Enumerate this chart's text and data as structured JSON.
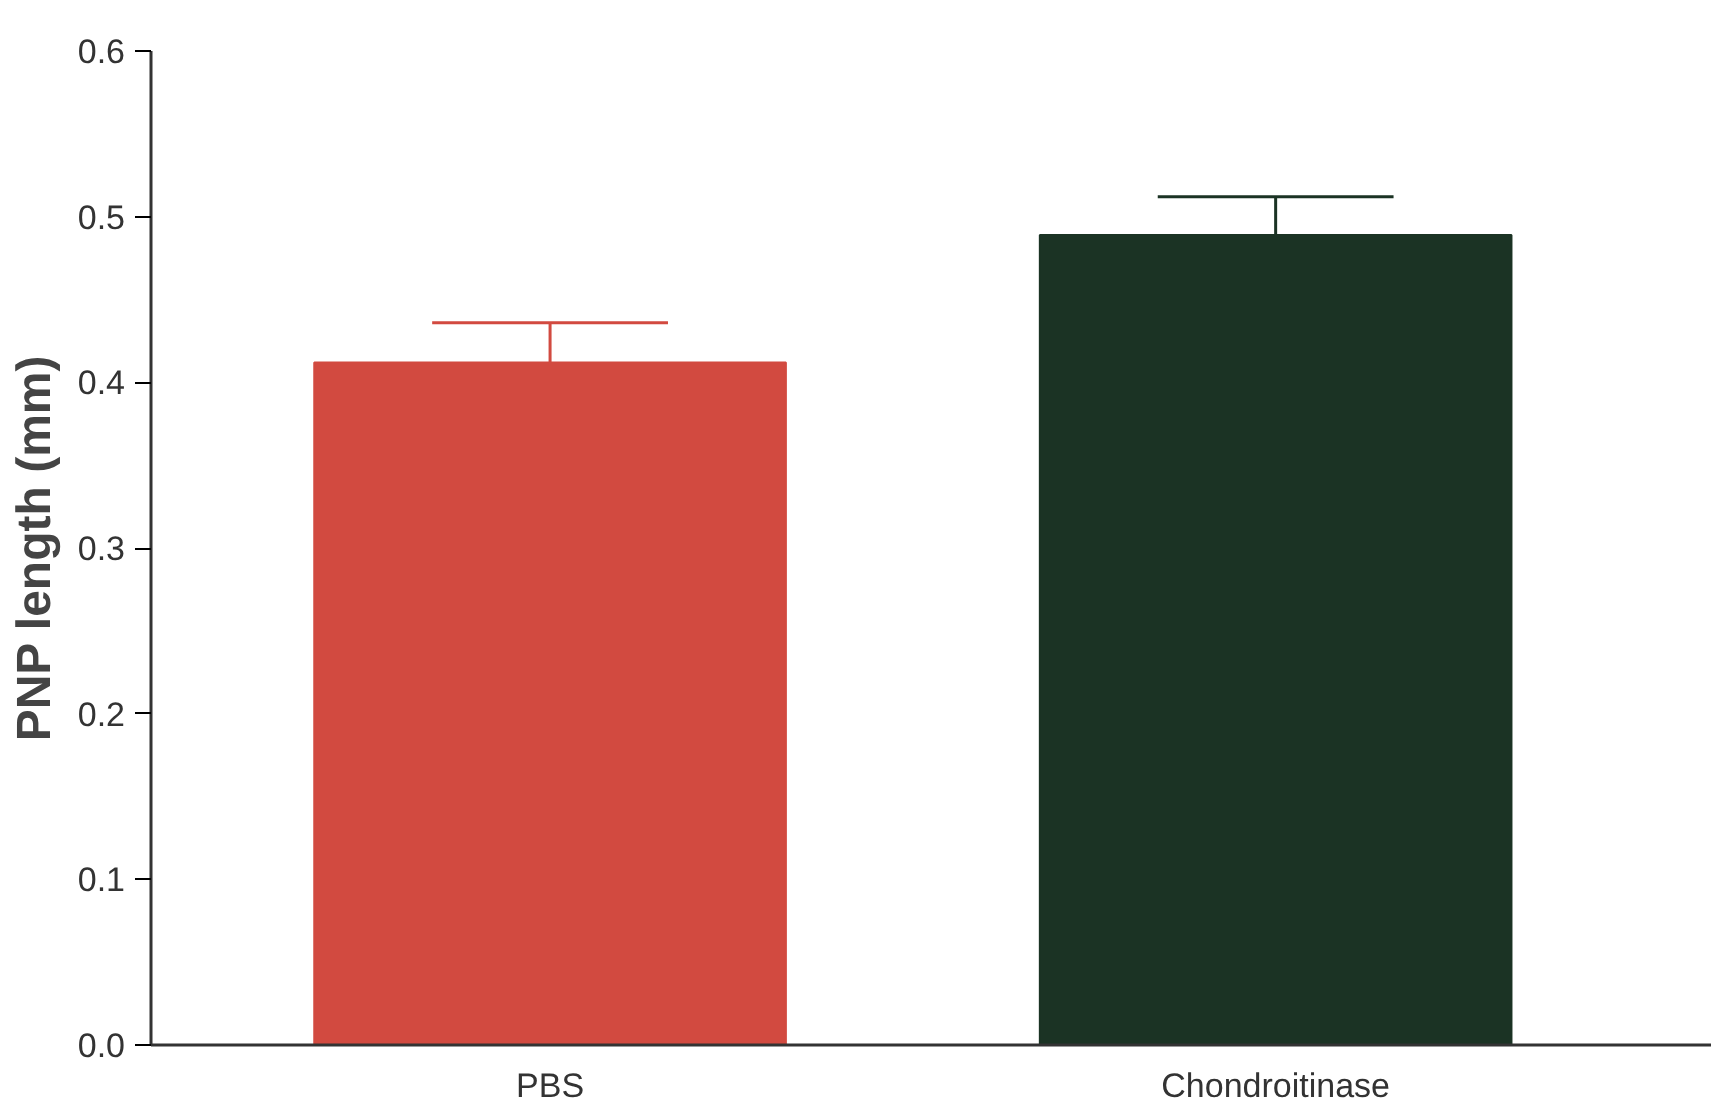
{
  "chart_data": {
    "type": "bar",
    "ylabel": "PNP length (mm)",
    "categories": [
      "PBS",
      "Chondroitinase"
    ],
    "values": [
      0.412,
      0.489
    ],
    "colors": [
      "#d24a40",
      "#1b3324"
    ],
    "errors": [
      [
        0.412,
        0.436
      ],
      [
        0.489,
        0.512
      ]
    ],
    "ylim": [
      0,
      0.6
    ],
    "yticks": [
      {
        "value": 0,
        "label": "0.0"
      },
      0.1,
      0.2,
      0.3,
      0.4,
      0.5,
      0.6
    ],
    "grid": false
  }
}
